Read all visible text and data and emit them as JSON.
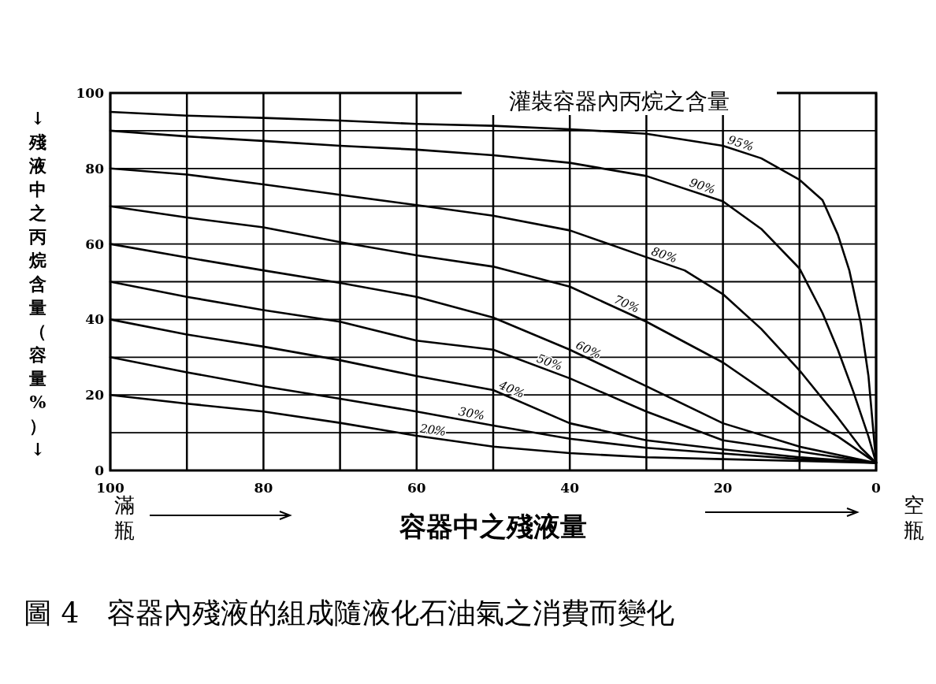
{
  "chart_data": {
    "type": "line",
    "title": "圖 4　容器內殘液的組成隨液化石油氣之消費而變化",
    "xlabel": "容器中之殘液量",
    "ylabel": "↓殘液中之丙烷含量（容量%）↓",
    "x": [
      100,
      90,
      80,
      70,
      60,
      50,
      40,
      30,
      20,
      10,
      0
    ],
    "series": [
      {
        "name": "95%",
        "color": "#000000",
        "x": [
          100,
          90,
          80,
          70,
          60,
          50,
          40,
          30,
          20,
          15,
          10,
          7,
          5,
          3.5,
          2,
          1,
          0
        ],
        "values": [
          95,
          94,
          93.4,
          92.7,
          91.8,
          91.3,
          90.4,
          89.2,
          86,
          82.7,
          77,
          71.6,
          62.5,
          53,
          39,
          25,
          2
        ]
      },
      {
        "name": "90%",
        "color": "#000000",
        "x": [
          100,
          90,
          80,
          70,
          60,
          50,
          40,
          30,
          20,
          15,
          10,
          7,
          5,
          3,
          1,
          0
        ],
        "values": [
          90,
          88.5,
          87.3,
          86,
          85,
          83.5,
          81.5,
          78,
          71.3,
          64,
          53.5,
          41.7,
          32,
          21,
          9,
          2
        ]
      },
      {
        "name": "80%",
        "color": "#000000",
        "x": [
          100,
          90,
          80,
          70,
          60,
          50,
          40,
          30,
          25,
          20,
          15,
          10,
          5,
          2,
          0
        ],
        "values": [
          80,
          78.4,
          75.8,
          73,
          70.3,
          67.5,
          63.6,
          56.5,
          53,
          46.7,
          37.5,
          26.5,
          14,
          6,
          2
        ]
      },
      {
        "name": "70%",
        "color": "#000000",
        "x": [
          100,
          90,
          80,
          70,
          60,
          50,
          40,
          30,
          20,
          10,
          5,
          0
        ],
        "values": [
          70,
          67,
          64.4,
          60.5,
          57,
          54,
          48.7,
          39.4,
          28.6,
          14.6,
          9,
          2
        ]
      },
      {
        "name": "60%",
        "color": "#000000",
        "values": [
          60,
          56.4,
          53,
          49.7,
          46,
          40.5,
          32,
          22.3,
          12.5,
          6.3,
          2
        ]
      },
      {
        "name": "50%",
        "color": "#000000",
        "values": [
          50,
          46,
          42.5,
          39.4,
          34.4,
          32,
          24.4,
          15.6,
          8,
          5,
          2
        ]
      },
      {
        "name": "40%",
        "color": "#000000",
        "values": [
          40,
          36,
          32.8,
          29.2,
          25,
          21.3,
          12.5,
          8,
          5.6,
          3.5,
          2
        ]
      },
      {
        "name": "30%",
        "color": "#000000",
        "values": [
          30,
          26,
          22.3,
          19,
          15.6,
          11.9,
          8.4,
          6,
          4.5,
          3,
          2
        ]
      },
      {
        "name": "20%",
        "color": "#000000",
        "values": [
          20,
          17.7,
          15.6,
          12.6,
          9.2,
          6.3,
          4.6,
          3.5,
          3,
          2.5,
          2
        ]
      }
    ],
    "annotations": [
      "灌裝容器內丙烷之含量",
      "滿瓶",
      "空瓶"
    ],
    "xlim": [
      100,
      0
    ],
    "ylim": [
      0,
      100
    ],
    "xticks": [
      100,
      {
        "value": 90,
        "label": null
      },
      80,
      {
        "value": 70,
        "label": null
      },
      60,
      {
        "value": 50,
        "label": null
      },
      40,
      {
        "value": 30,
        "label": null
      },
      20,
      {
        "value": 10,
        "label": null
      },
      0
    ],
    "yticks": [
      0,
      {
        "value": 10,
        "label": null
      },
      20,
      {
        "value": 30,
        "label": null
      },
      40,
      {
        "value": 50,
        "label": null
      },
      60,
      {
        "value": 70,
        "label": null
      },
      80,
      {
        "value": 90,
        "label": null
      },
      100
    ],
    "grid": true,
    "marker": "none",
    "line_style": "solid"
  }
}
